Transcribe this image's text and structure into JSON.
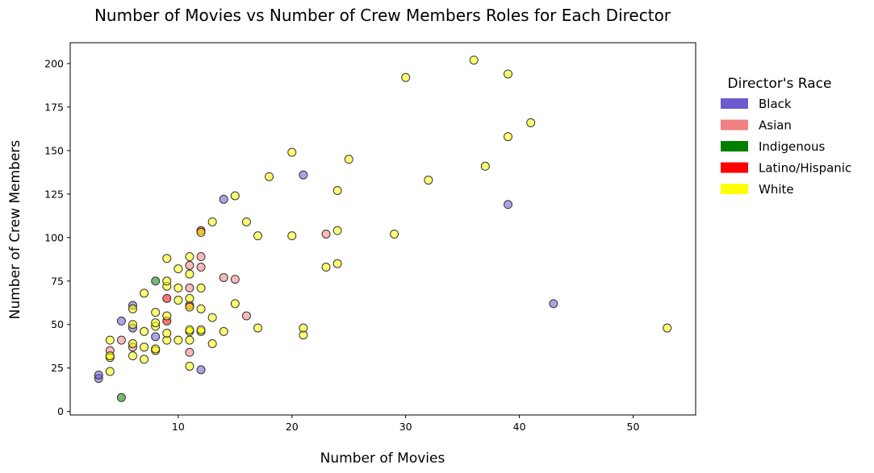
{
  "chart_data": {
    "type": "scatter",
    "title": "Number of Movies vs Number of Crew Members Roles for Each Director",
    "xlabel": "Number of Movies",
    "ylabel": "Number of Crew Members",
    "xlim": [
      0.5,
      55.5
    ],
    "ylim": [
      -2,
      212
    ],
    "xticks": [
      10,
      20,
      30,
      40,
      50
    ],
    "yticks": [
      0,
      25,
      50,
      75,
      100,
      125,
      150,
      175,
      200
    ],
    "grid": false,
    "legend": {
      "title": "Director's Race",
      "placement": "right, outside plot",
      "entries": [
        {
          "label": "Black",
          "color": "#6a5acd"
        },
        {
          "label": "Asian",
          "color": "#f08080"
        },
        {
          "label": "Indigenous",
          "color": "#008000"
        },
        {
          "label": "Latino/Hispanic",
          "color": "#ff0000"
        },
        {
          "label": "White",
          "color": "#ffff00"
        }
      ]
    },
    "point_alpha": 0.55,
    "series": [
      {
        "name": "Black",
        "color": "#6a5acd",
        "points": [
          [
            3,
            19
          ],
          [
            3,
            21
          ],
          [
            5,
            52
          ],
          [
            6,
            48
          ],
          [
            6,
            61
          ],
          [
            8,
            43
          ],
          [
            12,
            24
          ],
          [
            14,
            122
          ],
          [
            21,
            136
          ],
          [
            39,
            119
          ],
          [
            43,
            62
          ]
        ]
      },
      {
        "name": "Asian",
        "color": "#f08080",
        "points": [
          [
            4,
            35
          ],
          [
            5,
            41
          ],
          [
            6,
            37
          ],
          [
            11,
            34
          ],
          [
            11,
            71
          ],
          [
            11,
            84
          ],
          [
            12,
            83
          ],
          [
            12,
            89
          ],
          [
            14,
            77
          ],
          [
            15,
            76
          ],
          [
            16,
            55
          ],
          [
            23,
            102
          ]
        ]
      },
      {
        "name": "Indigenous",
        "color": "#008000",
        "points": [
          [
            5,
            8
          ],
          [
            8,
            75
          ]
        ]
      },
      {
        "name": "Latino/Hispanic",
        "color": "#ff0000",
        "points": [
          [
            9,
            52
          ],
          [
            9,
            65
          ],
          [
            11,
            61
          ],
          [
            12,
            104
          ]
        ]
      },
      {
        "name": "White",
        "color": "#ffff00",
        "points": [
          [
            4,
            23
          ],
          [
            4,
            31
          ],
          [
            4,
            32
          ],
          [
            4,
            41
          ],
          [
            6,
            32
          ],
          [
            6,
            39
          ],
          [
            6,
            50
          ],
          [
            6,
            59
          ],
          [
            7,
            30
          ],
          [
            7,
            37
          ],
          [
            7,
            46
          ],
          [
            7,
            68
          ],
          [
            8,
            35
          ],
          [
            8,
            36
          ],
          [
            8,
            49
          ],
          [
            8,
            51
          ],
          [
            8,
            57
          ],
          [
            9,
            41
          ],
          [
            9,
            45
          ],
          [
            9,
            55
          ],
          [
            9,
            72
          ],
          [
            9,
            75
          ],
          [
            9,
            88
          ],
          [
            10,
            41
          ],
          [
            10,
            64
          ],
          [
            10,
            71
          ],
          [
            10,
            82
          ],
          [
            11,
            26
          ],
          [
            11,
            41
          ],
          [
            11,
            46
          ],
          [
            11,
            47
          ],
          [
            11,
            60
          ],
          [
            11,
            65
          ],
          [
            11,
            79
          ],
          [
            11,
            89
          ],
          [
            12,
            46
          ],
          [
            12,
            47
          ],
          [
            12,
            59
          ],
          [
            12,
            71
          ],
          [
            12,
            103
          ],
          [
            13,
            39
          ],
          [
            13,
            54
          ],
          [
            13,
            109
          ],
          [
            14,
            46
          ],
          [
            15,
            62
          ],
          [
            15,
            124
          ],
          [
            16,
            109
          ],
          [
            17,
            48
          ],
          [
            17,
            101
          ],
          [
            18,
            135
          ],
          [
            20,
            101
          ],
          [
            20,
            149
          ],
          [
            21,
            44
          ],
          [
            21,
            48
          ],
          [
            23,
            83
          ],
          [
            24,
            85
          ],
          [
            24,
            104
          ],
          [
            24,
            127
          ],
          [
            25,
            145
          ],
          [
            29,
            102
          ],
          [
            30,
            192
          ],
          [
            32,
            133
          ],
          [
            36,
            202
          ],
          [
            37,
            141
          ],
          [
            39,
            158
          ],
          [
            39,
            194
          ],
          [
            41,
            166
          ],
          [
            53,
            48
          ]
        ]
      }
    ]
  }
}
